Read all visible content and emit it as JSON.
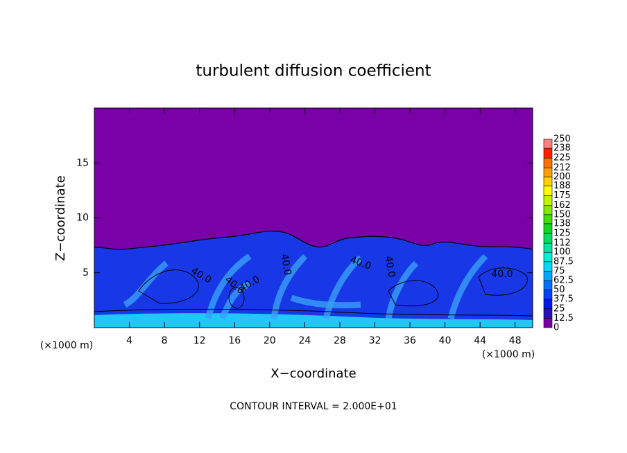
{
  "chart_data": {
    "type": "contour",
    "title": "turbulent diffusion coefficient",
    "x_label": "X−coordinate",
    "y_label": "Z−coordinate",
    "x_unit_label": "(×1000 m)",
    "footer": "CONTOUR INTERVAL = 2.000E+01",
    "xlim": [
      0,
      50
    ],
    "ylim": [
      0,
      20
    ],
    "xticks": [
      4,
      8,
      12,
      16,
      20,
      24,
      28,
      32,
      36,
      40,
      44,
      48
    ],
    "yticks": [
      5,
      10,
      15
    ],
    "background_color": "#7a00a8",
    "contour_labels": [
      "40.0",
      "40.0",
      "40.0",
      "40.0",
      "40.0",
      "40.0",
      "40.0"
    ],
    "colorbar": {
      "levels": [
        0,
        12.5,
        25,
        37.5,
        50,
        62.5,
        75,
        87.5,
        100,
        112,
        125,
        138,
        150,
        162,
        175,
        188,
        200,
        212,
        225,
        238,
        250
      ],
      "colors": [
        "#7a00a8",
        "#2a10b8",
        "#0018e0",
        "#0040f8",
        "#0070ff",
        "#00a8ff",
        "#00d8ff",
        "#00f0d8",
        "#00e8a0",
        "#00e060",
        "#10d820",
        "#40e000",
        "#80ec00",
        "#c0f400",
        "#ffff00",
        "#ffd000",
        "#ffa000",
        "#ff7000",
        "#ff2000",
        "#ff8080"
      ]
    }
  }
}
